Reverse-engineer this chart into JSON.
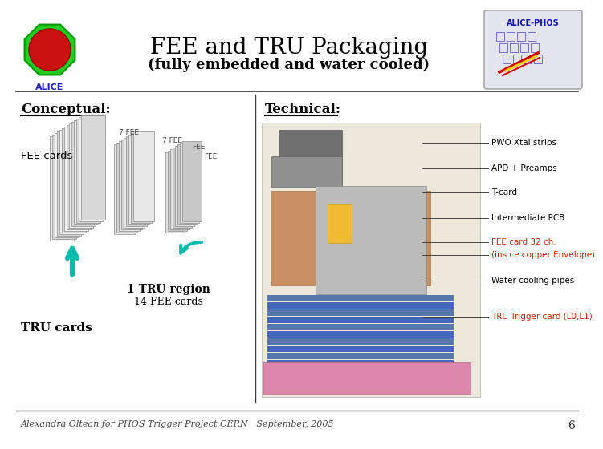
{
  "bg_color": "#ffffff",
  "title": "FEE and TRU Packaging",
  "subtitle": "(fully embedded and water cooled)",
  "title_fontsize": 20,
  "subtitle_fontsize": 13,
  "conceptual_label": "Conceptual:",
  "technical_label": "Technical:",
  "fee_cards_label": "FEE cards",
  "tru_cards_label": "TRU cards",
  "tru_region_label1": "1 TRU region",
  "tru_region_label2": "14 FEE cards",
  "alice_phos_label": "ALICE-PHOS",
  "footer_text": "Alexandra Oltean for PHOS Trigger Project CERN   September, 2005",
  "footer_page": "6",
  "footer_fontsize": 8,
  "technical_labels": [
    "PWO Xtal strips",
    "APD + Preamps",
    "T-card",
    "Intermediate PCB",
    "FEE card 32 ch.",
    "(ins ce copper Envelope)",
    "Water cooling pipes",
    "TRU Trigger card (L0,L1)"
  ],
  "technical_label_colors": [
    "#000000",
    "#000000",
    "#000000",
    "#000000",
    "#cc2200",
    "#cc2200",
    "#000000",
    "#cc2200"
  ],
  "teal_color": "#00bbaa",
  "card_fc1": "#f2f2f2",
  "card_fc2": "#e0e0e0",
  "card_edge": "#888888"
}
